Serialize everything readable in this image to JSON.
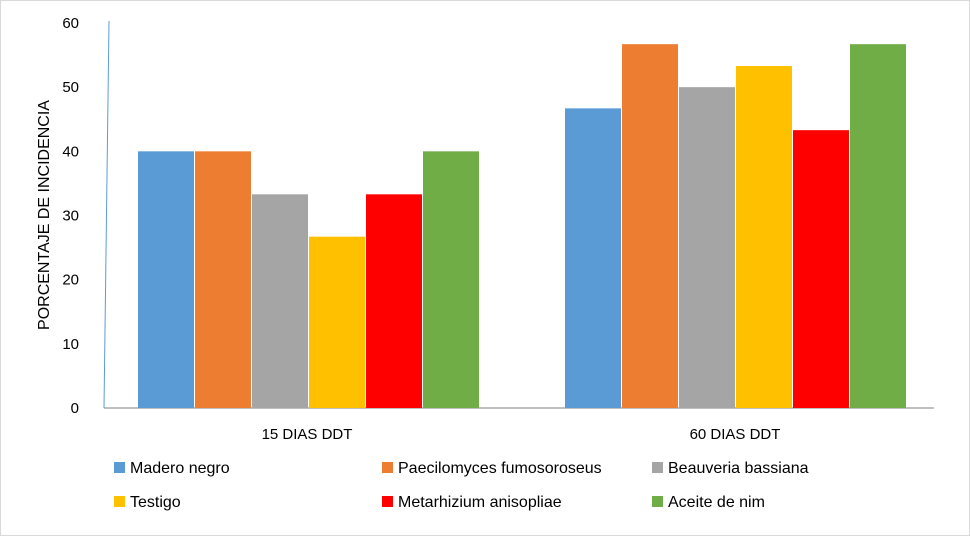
{
  "chart_data": {
    "type": "bar",
    "title": "",
    "xlabel": "",
    "ylabel": "PORCENTAJE DE INCIDENCIA",
    "ylim": [
      0,
      60
    ],
    "yticks": [
      0,
      10,
      20,
      30,
      40,
      50,
      60
    ],
    "grid": false,
    "legend_position": "bottom",
    "categories": [
      "15 DIAS DDT",
      "60 DIAS DDT"
    ],
    "series": [
      {
        "name": "Madero negro",
        "color": "#5b9bd5",
        "values": [
          40,
          46.7
        ]
      },
      {
        "name": "Paecilomyces fumosoroseus",
        "color": "#ed7d31",
        "values": [
          40,
          56.7
        ]
      },
      {
        "name": "Beauveria bassiana",
        "color": "#a5a5a5",
        "values": [
          33.3,
          50
        ]
      },
      {
        "name": "Testigo",
        "color": "#ffc000",
        "values": [
          26.7,
          53.3
        ]
      },
      {
        "name": "Metarhizium anisopliae",
        "color": "#ff0000",
        "values": [
          33.3,
          43.3
        ]
      },
      {
        "name": "Aceite de nim",
        "color": "#70ad47",
        "values": [
          40,
          56.7
        ]
      }
    ]
  }
}
